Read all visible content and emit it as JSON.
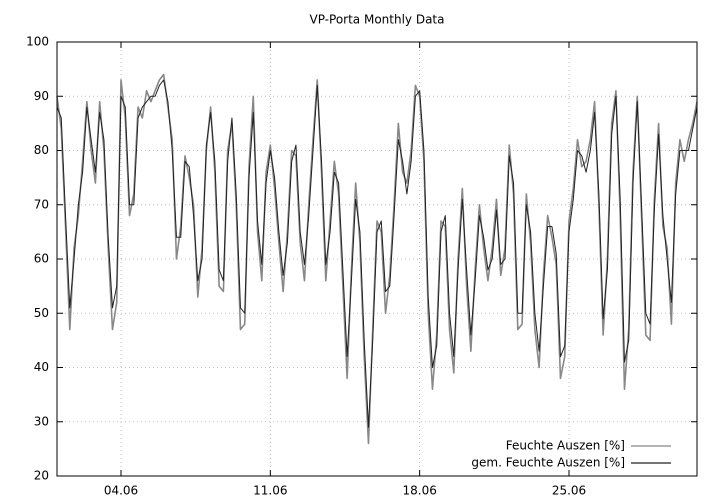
{
  "chart_data": {
    "type": "line",
    "title": "VP-Porta Monthly Data",
    "x": [
      1,
      1.2,
      1.4,
      1.6,
      1.8,
      2,
      2.2,
      2.4,
      2.6,
      2.8,
      3,
      3.2,
      3.4,
      3.6,
      3.8,
      4,
      4.2,
      4.4,
      4.6,
      4.8,
      5,
      5.2,
      5.4,
      5.6,
      5.8,
      6,
      6.2,
      6.4,
      6.6,
      6.8,
      7,
      7.2,
      7.4,
      7.6,
      7.8,
      8,
      8.2,
      8.4,
      8.6,
      8.8,
      9,
      9.2,
      9.4,
      9.6,
      9.8,
      10,
      10.2,
      10.4,
      10.6,
      10.8,
      11,
      11.2,
      11.4,
      11.6,
      11.8,
      12,
      12.2,
      12.4,
      12.6,
      12.8,
      13,
      13.2,
      13.4,
      13.6,
      13.8,
      14,
      14.2,
      14.4,
      14.6,
      14.8,
      15,
      15.2,
      15.4,
      15.6,
      15.8,
      16,
      16.2,
      16.4,
      16.6,
      16.8,
      17,
      17.2,
      17.4,
      17.6,
      17.8,
      18,
      18.2,
      18.4,
      18.6,
      18.8,
      19,
      19.2,
      19.4,
      19.6,
      19.8,
      20,
      20.2,
      20.4,
      20.6,
      20.8,
      21,
      21.2,
      21.4,
      21.6,
      21.8,
      22,
      22.2,
      22.4,
      22.6,
      22.8,
      23,
      23.2,
      23.4,
      23.6,
      23.8,
      24,
      24.2,
      24.4,
      24.6,
      24.8,
      25,
      25.2,
      25.4,
      25.6,
      25.8,
      26,
      26.2,
      26.4,
      26.6,
      26.8,
      27,
      27.2,
      27.4,
      27.6,
      27.8,
      28,
      28.2,
      28.4,
      28.6,
      28.8,
      29,
      29.2,
      29.4,
      29.6,
      29.8,
      30,
      30.2,
      30.4,
      30.6,
      30.8,
      31
    ],
    "series": [
      {
        "name": "Feuchte Auszen [%]",
        "color": "#888888",
        "values": [
          90,
          84,
          66,
          47,
          62,
          68,
          78,
          89,
          80,
          74,
          89,
          80,
          62,
          47,
          52,
          93,
          86,
          68,
          72,
          88,
          86,
          91,
          89,
          91,
          93,
          94,
          88,
          82,
          60,
          66,
          79,
          75,
          70,
          53,
          62,
          80,
          88,
          76,
          55,
          54,
          80,
          85,
          70,
          47,
          48,
          77,
          90,
          65,
          56,
          76,
          81,
          73,
          63,
          54,
          65,
          80,
          79,
          63,
          56,
          70,
          82,
          93,
          76,
          56,
          67,
          78,
          72,
          55,
          38,
          58,
          74,
          63,
          42,
          26,
          47,
          67,
          65,
          50,
          57,
          70,
          85,
          76,
          74,
          80,
          92,
          90,
          78,
          50,
          36,
          46,
          67,
          66,
          47,
          39,
          60,
          73,
          55,
          43,
          58,
          70,
          62,
          56,
          62,
          71,
          57,
          62,
          81,
          72,
          47,
          48,
          72,
          63,
          47,
          40,
          57,
          68,
          64,
          59,
          38,
          42,
          67,
          73,
          82,
          77,
          78,
          82,
          89,
          70,
          46,
          60,
          85,
          91,
          68,
          36,
          47,
          76,
          90,
          68,
          46,
          45,
          71,
          85,
          66,
          62,
          48,
          74,
          82,
          78,
          82,
          85,
          89
        ]
      },
      {
        "name": "gem. Feuchte Auszen [%]",
        "color": "#222222",
        "values": [
          88,
          86,
          68,
          51,
          60,
          70,
          76,
          88,
          82,
          76,
          87,
          82,
          64,
          51,
          55,
          90,
          88,
          70,
          70,
          86,
          88,
          89,
          90,
          90,
          92,
          93,
          89,
          80,
          64,
          64,
          78,
          77,
          68,
          56,
          60,
          81,
          87,
          78,
          58,
          56,
          78,
          86,
          72,
          51,
          50,
          75,
          87,
          67,
          59,
          74,
          80,
          75,
          65,
          57,
          63,
          78,
          81,
          65,
          59,
          68,
          80,
          92,
          78,
          59,
          65,
          76,
          74,
          58,
          42,
          56,
          71,
          65,
          45,
          29,
          45,
          65,
          67,
          54,
          55,
          68,
          82,
          78,
          72,
          78,
          90,
          91,
          80,
          53,
          40,
          44,
          65,
          68,
          50,
          42,
          58,
          71,
          58,
          46,
          56,
          68,
          64,
          58,
          60,
          69,
          59,
          60,
          79,
          74,
          50,
          50,
          70,
          65,
          50,
          43,
          55,
          66,
          66,
          61,
          42,
          44,
          65,
          71,
          80,
          79,
          76,
          80,
          87,
          72,
          49,
          58,
          83,
          90,
          71,
          41,
          45,
          74,
          89,
          70,
          50,
          48,
          69,
          83,
          68,
          60,
          52,
          72,
          80,
          80,
          80,
          84,
          88
        ]
      }
    ],
    "xlim": [
      1,
      31
    ],
    "xticks": [
      {
        "value": 4,
        "label": "04.06"
      },
      {
        "value": 11,
        "label": "11.06"
      },
      {
        "value": 18,
        "label": "18.06"
      },
      {
        "value": 25,
        "label": "25.06"
      }
    ],
    "ylim": [
      20,
      100
    ],
    "yticks": [
      20,
      30,
      40,
      50,
      60,
      70,
      80,
      90,
      100
    ],
    "grid": true,
    "legend": "bottom-right"
  }
}
